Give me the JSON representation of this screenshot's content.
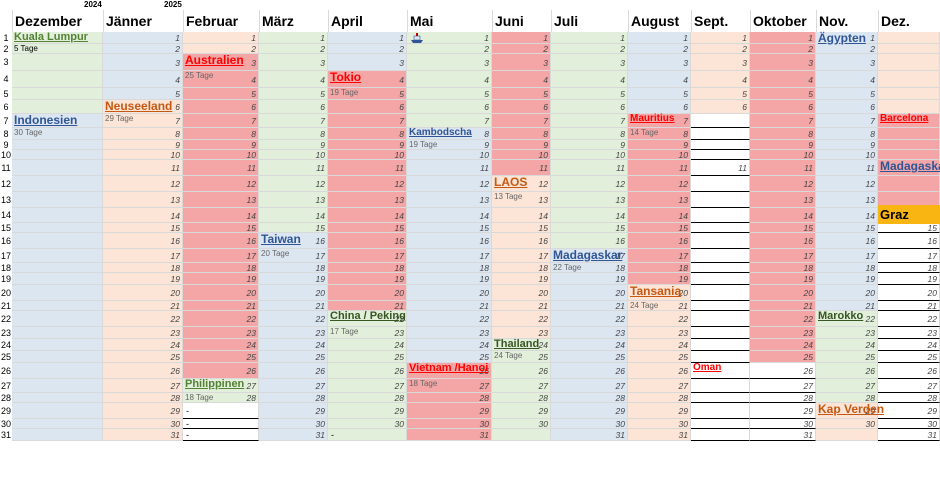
{
  "years": {
    "y2024": "2024",
    "y2025": "2025"
  },
  "months": [
    {
      "name": "Dezember"
    },
    {
      "name": "Jänner"
    },
    {
      "name": "Februar"
    },
    {
      "name": "März"
    },
    {
      "name": "April"
    },
    {
      "name": "Mai"
    },
    {
      "name": "Juni"
    },
    {
      "name": "Juli"
    },
    {
      "name": "August"
    },
    {
      "name": "Sept."
    },
    {
      "name": "Oktober"
    },
    {
      "name": "Nov."
    },
    {
      "name": "Dez."
    }
  ],
  "row_numbers": [
    "1",
    "2",
    "3",
    "4",
    "5",
    "6",
    "7",
    "8",
    "9",
    "10",
    "11",
    "12",
    "13",
    "14",
    "15",
    "16",
    "17",
    "18",
    "19",
    "20",
    "21",
    "22",
    "23",
    "24",
    "25",
    "26",
    "27",
    "28",
    "29",
    "30",
    "31"
  ],
  "colors": {
    "green": "#e2efda",
    "blue": "#dce6f1",
    "peach": "#fce4d6",
    "red": "#f4a6a6",
    "white": "#ffffff",
    "graz": "#f9b511",
    "label_red": "#ff0000",
    "label_green": "#548235",
    "label_blue": "#2f5597",
    "label_orange": "#c65911",
    "label_dkgreen": "#375623"
  },
  "trips": [
    {
      "id": "kuala-lumpur",
      "col": 0,
      "row": 1,
      "label": "Kuala Lumpur",
      "color": "label_green",
      "days": "5 Tage"
    },
    {
      "id": "indonesien",
      "col": 0,
      "row": 7,
      "label": "Indonesien",
      "color": "label_blue",
      "days": "30 Tage"
    },
    {
      "id": "neuseeland",
      "col": 1,
      "row": 6,
      "label": "Neuseeland",
      "color": "label_orange",
      "days": "29 Tage"
    },
    {
      "id": "australien",
      "col": 2,
      "row": 3,
      "label": "Australien",
      "color": "label_red",
      "days": "25 Tage"
    },
    {
      "id": "philippinen",
      "col": 2,
      "row": 27,
      "label": "Philippinen",
      "color": "label_green",
      "days": "18 Tage"
    },
    {
      "id": "taiwan",
      "col": 3,
      "row": 16,
      "label": "Taiwan",
      "color": "label_blue",
      "days": "20 Tage"
    },
    {
      "id": "tokio",
      "col": 4,
      "row": 4,
      "label": "Tokio",
      "color": "label_red",
      "days": "19 Tage"
    },
    {
      "id": "china",
      "col": 4,
      "row": 22,
      "label": "China / Peking",
      "color": "label_dkgreen",
      "days": "17 Tage"
    },
    {
      "id": "kambodscha",
      "col": 5,
      "row": 8,
      "label": "Kambodscha",
      "color": "label_blue",
      "days": "19 Tage"
    },
    {
      "id": "vietnam",
      "col": 5,
      "row": 26,
      "label": "Vietnam /Hanoi",
      "color": "label_red",
      "days": "18 Tage"
    },
    {
      "id": "laos",
      "col": 6,
      "row": 12,
      "label": "LAOS",
      "color": "label_orange",
      "days": "13 Tage"
    },
    {
      "id": "thailand",
      "col": 6,
      "row": 24,
      "label": "Thailand",
      "color": "label_dkgreen",
      "days": "24 Tage"
    },
    {
      "id": "madagaskar-juli",
      "col": 7,
      "row": 17,
      "label": "Madagaskar",
      "color": "label_blue",
      "days": "22 Tage"
    },
    {
      "id": "mauritius",
      "col": 8,
      "row": 7,
      "label": "Mauritius",
      "color": "label_red",
      "days": "14 Tage"
    },
    {
      "id": "tansania",
      "col": 8,
      "row": 20,
      "label": "Tansania",
      "color": "label_orange",
      "days": "24 Tage"
    },
    {
      "id": "oman",
      "col": 9,
      "row": 26,
      "label": "Oman",
      "color": "label_red",
      "days": ""
    },
    {
      "id": "aegypten",
      "col": 11,
      "row": 1,
      "label": "Ägypten",
      "color": "label_blue",
      "days": ""
    },
    {
      "id": "marokko",
      "col": 11,
      "row": 22,
      "label": "Marokko",
      "color": "label_dkgreen",
      "days": ""
    },
    {
      "id": "kap-verden",
      "col": 11,
      "row": 29,
      "label": "Kap Verden",
      "color": "label_orange",
      "days": ""
    },
    {
      "id": "barcelona",
      "col": 12,
      "row": 7,
      "label": "Barcelona",
      "color": "label_red",
      "days": ""
    },
    {
      "id": "madagaskar-dez",
      "col": 12,
      "row": 11,
      "label": "Madagaskar",
      "color": "label_blue",
      "days": ""
    }
  ],
  "graz": {
    "label": "Graz"
  },
  "dash": "-"
}
